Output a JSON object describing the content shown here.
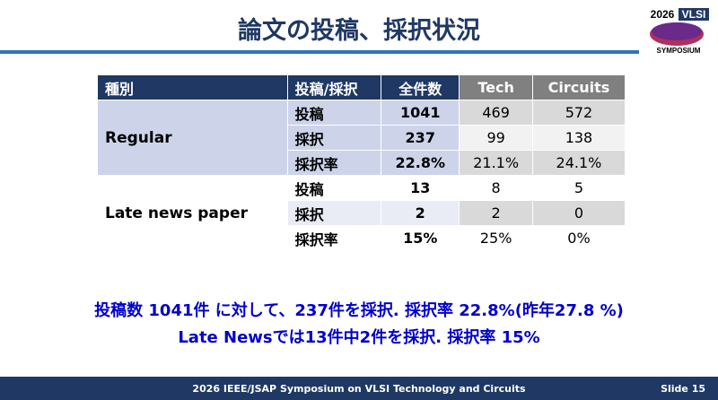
{
  "header": {
    "title": "論文の投稿、採択状況",
    "logo": {
      "year": "2026",
      "name": "VLSI",
      "subtitle": "SYMPOSIUM"
    }
  },
  "table": {
    "columns": [
      "種別",
      "投稿/採択",
      "全件数",
      "Tech",
      "Circuits"
    ],
    "groups": [
      {
        "label": "Regular",
        "rows": [
          [
            "投稿",
            "1041",
            "469",
            "572"
          ],
          [
            "採択",
            "237",
            "99",
            "138"
          ],
          [
            "採択率",
            "22.8%",
            "21.1%",
            "24.1%"
          ]
        ]
      },
      {
        "label": "Late news paper",
        "rows": [
          [
            "投稿",
            "13",
            "8",
            "5"
          ],
          [
            "採択",
            "2",
            "2",
            "0"
          ],
          [
            "採択率",
            "15%",
            "25%",
            "0%"
          ]
        ]
      }
    ]
  },
  "summary": [
    "投稿数 1041件 に対して、237件を採択. 採択率 22.8%(昨年27.8 %)",
    "Late Newsでは13件中2件を採択. 採択率 15%"
  ],
  "footer": {
    "text": "2026 IEEE/JSAP Symposium on VLSI Technology and Circuits",
    "slide": "Slide 15"
  }
}
